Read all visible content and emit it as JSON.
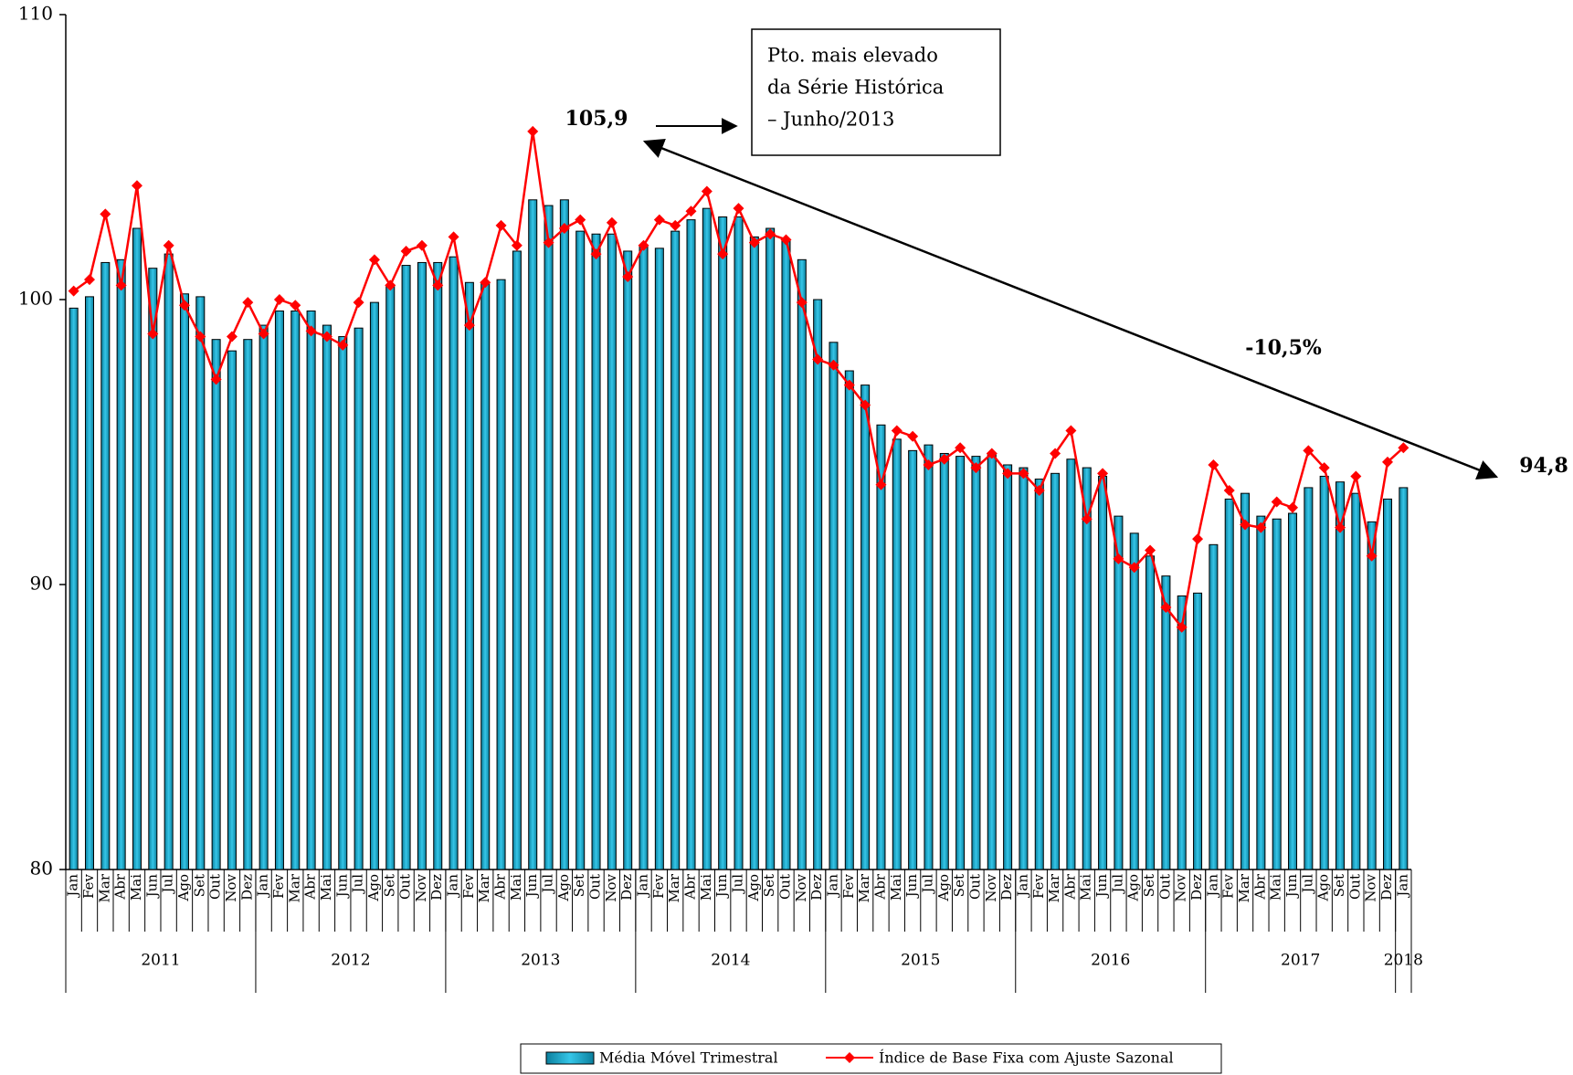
{
  "chart_data": {
    "type": "bar-line",
    "categories": [
      "Jan",
      "Fev",
      "Mar",
      "Abr",
      "Mai",
      "Jun",
      "Jul",
      "Ago",
      "Set",
      "Out",
      "Nov",
      "Dez",
      "Jan",
      "Fev",
      "Mar",
      "Abr",
      "Mai",
      "Jun",
      "Jul",
      "Ago",
      "Set",
      "Out",
      "Nov",
      "Dez",
      "Jan",
      "Fev",
      "Mar",
      "Abr",
      "Mai",
      "Jun",
      "Jul",
      "Ago",
      "Set",
      "Out",
      "Nov",
      "Dez",
      "Jan",
      "Fev",
      "Mar",
      "Abr",
      "Mai",
      "Jun",
      "Jul",
      "Ago",
      "Set",
      "Out",
      "Nov",
      "Dez",
      "Jan",
      "Fev",
      "Mar",
      "Abr",
      "Mai",
      "Jun",
      "Jul",
      "Ago",
      "Set",
      "Out",
      "Nov",
      "Dez",
      "Jan",
      "Fev",
      "Mar",
      "Abr",
      "Mai",
      "Jun",
      "Jul",
      "Ago",
      "Set",
      "Out",
      "Nov",
      "Dez",
      "Jan",
      "Fev",
      "Mar",
      "Abr",
      "Mai",
      "Jun",
      "Jul",
      "Ago",
      "Set",
      "Out",
      "Nov",
      "Dez",
      "Jan"
    ],
    "years": [
      "2011",
      "2012",
      "2013",
      "2014",
      "2015",
      "2016",
      "2017",
      "2018"
    ],
    "series": [
      {
        "name": "Média Móvel Trimestral",
        "type": "bar",
        "color": "#1aa9c9",
        "values": [
          99.7,
          100.1,
          101.3,
          101.4,
          102.5,
          101.1,
          101.6,
          100.2,
          100.1,
          98.6,
          98.2,
          98.6,
          99.1,
          99.6,
          99.6,
          99.6,
          99.1,
          98.7,
          99.0,
          99.9,
          100.5,
          101.2,
          101.3,
          101.3,
          101.5,
          100.6,
          100.6,
          100.7,
          101.7,
          103.5,
          103.3,
          103.5,
          102.4,
          102.3,
          102.3,
          101.7,
          101.9,
          101.8,
          102.4,
          102.8,
          103.2,
          102.9,
          102.9,
          102.2,
          102.5,
          102.1,
          101.4,
          100.0,
          98.5,
          97.5,
          97.0,
          95.6,
          95.1,
          94.7,
          94.9,
          94.6,
          94.5,
          94.5,
          94.6,
          94.2,
          94.1,
          93.7,
          93.9,
          94.4,
          94.1,
          93.8,
          92.4,
          91.8,
          91.0,
          90.3,
          89.6,
          89.7,
          91.4,
          93.0,
          93.2,
          92.4,
          92.3,
          92.5,
          93.4,
          93.8,
          93.6,
          93.2,
          92.2,
          93.0,
          93.4
        ]
      },
      {
        "name": "Índice de Base Fixa com Ajuste Sazonal",
        "type": "line",
        "color": "#ff0000",
        "values": [
          100.3,
          100.7,
          103.0,
          100.5,
          104.0,
          98.8,
          101.9,
          99.8,
          98.7,
          97.2,
          98.7,
          99.9,
          98.8,
          100.0,
          99.8,
          98.9,
          98.7,
          98.4,
          99.9,
          101.4,
          100.5,
          101.7,
          101.9,
          100.5,
          102.2,
          99.1,
          100.6,
          102.6,
          101.9,
          105.9,
          102.0,
          102.5,
          102.8,
          101.6,
          102.7,
          100.8,
          101.9,
          102.8,
          102.6,
          103.1,
          103.8,
          101.6,
          103.2,
          102.0,
          102.3,
          102.1,
          99.9,
          97.9,
          97.7,
          97.0,
          96.3,
          93.5,
          95.4,
          95.2,
          94.2,
          94.4,
          94.8,
          94.1,
          94.6,
          93.9,
          93.9,
          93.3,
          94.6,
          95.4,
          92.3,
          93.9,
          90.9,
          90.6,
          91.2,
          89.2,
          88.5,
          91.6,
          94.2,
          93.3,
          92.1,
          92.0,
          92.9,
          92.7,
          94.7,
          94.1,
          92.0,
          93.8,
          91.0,
          94.3,
          94.8
        ]
      }
    ],
    "ylim": [
      80,
      110
    ],
    "yticks": [
      80,
      90,
      100,
      110
    ],
    "grid": false,
    "legend": "bottom",
    "annotations": {
      "peak": "105,9",
      "last": "94,8",
      "change": "-10,5%",
      "box_text": [
        "Pto. mais elevado",
        "da Série Histórica",
        "– Junho/2013"
      ]
    }
  }
}
